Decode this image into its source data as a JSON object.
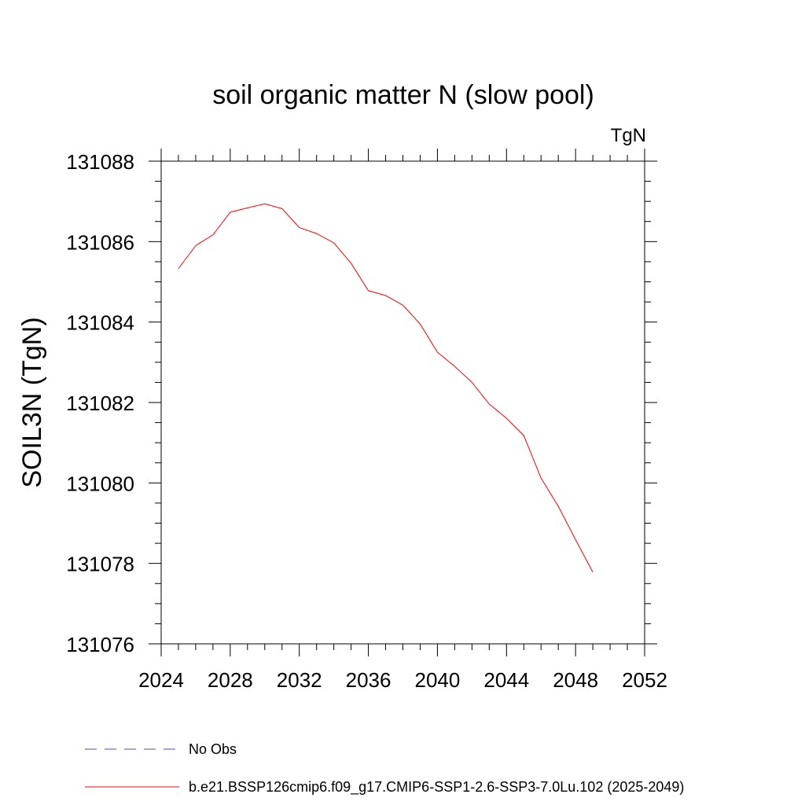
{
  "chart_data": {
    "type": "line",
    "title": "soil organic matter N (slow pool)",
    "units": "TgN",
    "ylabel": "SOIL3N  (TgN)",
    "xlabel": "",
    "xlim": [
      2024,
      2052
    ],
    "ylim": [
      131076,
      131088
    ],
    "x_ticks": [
      2024,
      2028,
      2032,
      2036,
      2040,
      2044,
      2048,
      2052
    ],
    "y_ticks": [
      131076,
      131078,
      131080,
      131082,
      131084,
      131086,
      131088
    ],
    "x_tick_labels": [
      "2024",
      "2028",
      "2032",
      "2036",
      "2040",
      "2044",
      "2048",
      "2052"
    ],
    "y_tick_labels": [
      "131076",
      "131078",
      "131080",
      "131082",
      "131084",
      "131086",
      "131088"
    ],
    "grid": false,
    "legend_position": "bottom",
    "series": [
      {
        "name": "No Obs",
        "color": "#5a4a9c",
        "style": "dashed",
        "x": [],
        "y": []
      },
      {
        "name": "b.e21.BSSP126cmip6.f09_g17.CMIP6-SSP1-2.6-SSP3-7.0Lu.102 (2025-2049)",
        "color": "#ff0000",
        "style": "solid",
        "x": [
          2025,
          2026,
          2027,
          2028,
          2029,
          2030,
          2031,
          2032,
          2033,
          2034,
          2035,
          2036,
          2037,
          2038,
          2039,
          2040,
          2041,
          2042,
          2043,
          2044,
          2045,
          2046,
          2047,
          2048,
          2049
        ],
        "y": [
          131085.33,
          131085.9,
          131086.17,
          131086.73,
          131086.84,
          131086.94,
          131086.82,
          131086.35,
          131086.2,
          131085.97,
          131085.46,
          131084.78,
          131084.66,
          131084.42,
          131083.95,
          131083.25,
          131082.9,
          131082.5,
          131081.96,
          131081.61,
          131081.18,
          131080.12,
          131079.42,
          131078.59,
          131077.78
        ]
      }
    ]
  }
}
